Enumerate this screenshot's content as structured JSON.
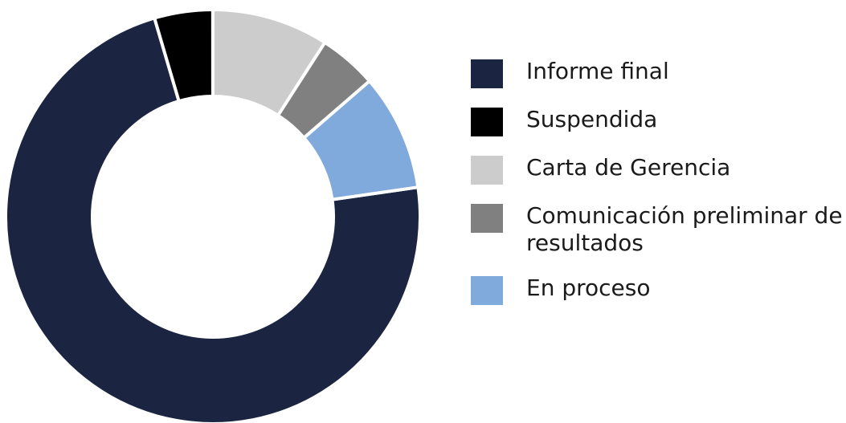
{
  "chart_data": {
    "type": "donut",
    "categories": [
      "Informe final",
      "Suspendida",
      "Carta de Gerencia",
      "Comunicación preliminar de resultados",
      "En proceso"
    ],
    "values": [
      16,
      1,
      2,
      1,
      2
    ],
    "colors": [
      "#1b2541",
      "#000000",
      "#cccccc",
      "#808080",
      "#80aadc"
    ],
    "legend": "right"
  }
}
